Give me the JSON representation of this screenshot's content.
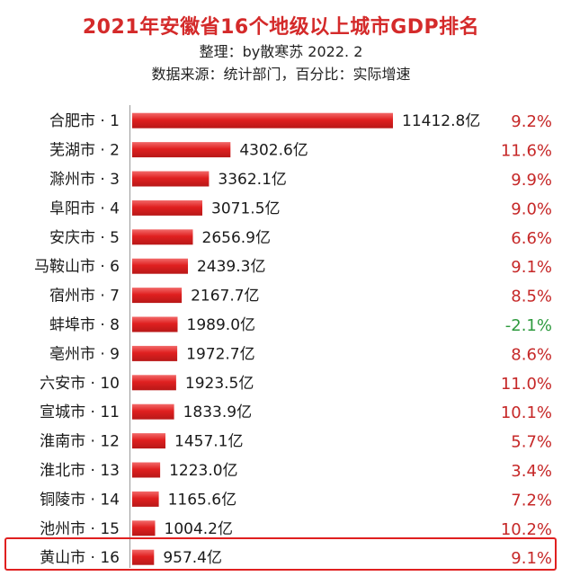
{
  "header": {
    "title": "2021年安徽省16个地级以上城市GDP排名",
    "subtitle": "整理：by散寒苏 2022. 2",
    "source": "数据来源：统计部门，百分比：实际增速"
  },
  "colors": {
    "bar": "#e02020",
    "positive_growth": "#c62828",
    "negative_growth": "#2e9a3e",
    "highlight_border": "#e02020"
  },
  "chart_data": {
    "type": "bar",
    "orientation": "horizontal",
    "title": "2021年安徽省16个地级以上城市GDP排名",
    "categories": [
      "合肥市 · 1",
      "芜湖市 · 2",
      "滁州市 · 3",
      "阜阳市 · 4",
      "安庆市 · 5",
      "马鞍山市 · 6",
      "宿州市 · 7",
      "蚌埠市 · 8",
      "亳州市 · 9",
      "六安市 · 10",
      "宣城市 · 11",
      "淮南市 · 12",
      "淮北市 · 13",
      "铜陵市 · 14",
      "池州市 · 15",
      "黄山市 · 16"
    ],
    "values": [
      11412.8,
      4302.6,
      3362.1,
      3071.5,
      2656.9,
      2439.3,
      2167.7,
      1989.0,
      1972.7,
      1923.5,
      1833.9,
      1457.1,
      1223.0,
      1165.6,
      1004.2,
      957.4
    ],
    "value_labels": [
      "11412.8亿",
      "4302.6亿",
      "3362.1亿",
      "3071.5亿",
      "2656.9亿",
      "2439.3亿",
      "2167.7亿",
      "1989.0亿",
      "1972.7亿",
      "1923.5亿",
      "1833.9亿",
      "1457.1亿",
      "1223.0亿",
      "1165.6亿",
      "1004.2亿",
      "957.4亿"
    ],
    "growth": [
      9.2,
      11.6,
      9.9,
      9.0,
      6.6,
      9.1,
      8.5,
      -2.1,
      8.6,
      11.0,
      10.1,
      5.7,
      3.4,
      7.2,
      10.2,
      9.1
    ],
    "growth_labels": [
      "9.2%",
      "11.6%",
      "9.9%",
      "9.0%",
      "6.6%",
      "9.1%",
      "8.5%",
      "-2.1%",
      "8.6%",
      "11.0%",
      "10.1%",
      "5.7%",
      "3.4%",
      "7.2%",
      "10.2%",
      "9.1%"
    ],
    "highlighted_category": "黄山市 · 16",
    "grid": false,
    "legend": "none"
  }
}
